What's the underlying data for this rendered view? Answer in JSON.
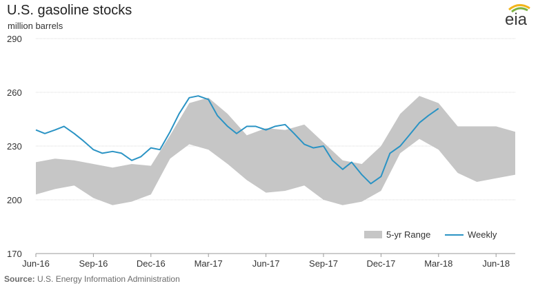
{
  "header": {
    "title": "U.S. gasoline stocks",
    "subtitle": "million barrels"
  },
  "footer": {
    "source_label": "Source:",
    "source_text": " U.S. Energy Information Administration"
  },
  "logo": {
    "text": "eia",
    "icon": "eia-logo"
  },
  "colors": {
    "range": "#c6c6c6",
    "weekly": "#2a93c4",
    "grid": "#d9d9d9",
    "axis": "#999999"
  },
  "chart_data": {
    "type": "area",
    "title": "U.S. gasoline stocks",
    "ylabel": "million barrels",
    "ylim": [
      170,
      290
    ],
    "yticks": [
      170,
      200,
      230,
      260,
      290
    ],
    "x_range": [
      "2016-06",
      "2018-07"
    ],
    "xticks": [
      {
        "label": "Jun-16",
        "x": "2016-06"
      },
      {
        "label": "Sep-16",
        "x": "2016-09"
      },
      {
        "label": "Dec-16",
        "x": "2016-12"
      },
      {
        "label": "Mar-17",
        "x": "2017-03"
      },
      {
        "label": "Jun-17",
        "x": "2017-06"
      },
      {
        "label": "Sep-17",
        "x": "2017-09"
      },
      {
        "label": "Dec-17",
        "x": "2017-12"
      },
      {
        "label": "Mar-18",
        "x": "2018-03"
      },
      {
        "label": "Jun-18",
        "x": "2018-06"
      }
    ],
    "grid": true,
    "legend": "bottom-right",
    "series": [
      {
        "name": "5-yr Range",
        "kind": "band",
        "x": [
          "2016-06",
          "2016-07",
          "2016-08",
          "2016-09",
          "2016-10",
          "2016-11",
          "2016-12",
          "2017-01",
          "2017-02",
          "2017-03",
          "2017-04",
          "2017-05",
          "2017-06",
          "2017-07",
          "2017-08",
          "2017-09",
          "2017-10",
          "2017-11",
          "2017-12",
          "2018-01",
          "2018-02",
          "2018-03",
          "2018-04",
          "2018-05",
          "2018-06",
          "2018-07"
        ],
        "lower": [
          203,
          206,
          208,
          201,
          197,
          199,
          203,
          223,
          231,
          228,
          220,
          211,
          204,
          205,
          208,
          200,
          197,
          199,
          205,
          226,
          234,
          228,
          215,
          210,
          212,
          214
        ],
        "upper": [
          221,
          223,
          222,
          220,
          218,
          220,
          219,
          236,
          254,
          257,
          248,
          236,
          240,
          239,
          242,
          232,
          222,
          220,
          230,
          248,
          258,
          254,
          241,
          241,
          241,
          238
        ]
      },
      {
        "name": "Weekly",
        "kind": "line",
        "x": [
          "2016-06",
          "2016-06-15",
          "2016-07",
          "2016-07-15",
          "2016-08",
          "2016-08-15",
          "2016-09",
          "2016-09-15",
          "2016-10",
          "2016-10-15",
          "2016-11",
          "2016-11-15",
          "2016-12",
          "2016-12-15",
          "2017-01",
          "2017-01-15",
          "2017-02",
          "2017-02-15",
          "2017-03",
          "2017-03-15",
          "2017-04",
          "2017-04-15",
          "2017-05",
          "2017-05-15",
          "2017-06",
          "2017-06-15",
          "2017-07",
          "2017-07-15",
          "2017-08",
          "2017-08-15",
          "2017-09",
          "2017-09-15",
          "2017-10",
          "2017-10-15",
          "2017-11",
          "2017-11-15",
          "2017-12",
          "2017-12-15",
          "2018-01",
          "2018-01-15",
          "2018-02",
          "2018-02-15",
          "2018-03"
        ],
        "values": [
          239,
          237,
          239,
          241,
          237,
          233,
          228,
          226,
          227,
          226,
          222,
          224,
          229,
          228,
          238,
          248,
          257,
          258,
          256,
          247,
          241,
          237,
          241,
          241,
          239,
          241,
          242,
          237,
          231,
          229,
          230,
          222,
          217,
          221,
          214,
          209,
          213,
          226,
          230,
          236,
          243,
          247,
          251
        ]
      }
    ]
  }
}
